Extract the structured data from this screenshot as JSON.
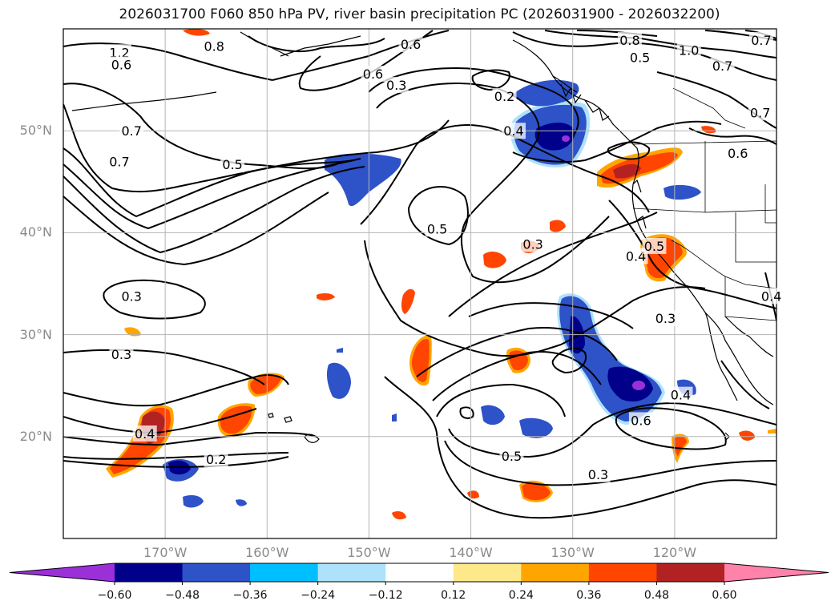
{
  "title": "2026031700 F060 850 hPa PV, river basin precipitation PC (2026031900 - 2026032200)",
  "map": {
    "lon_range": [
      -180,
      -110
    ],
    "lat_range": [
      10,
      60
    ],
    "lat_labels": [
      {
        "lat": 50,
        "label": "50°N"
      },
      {
        "lat": 40,
        "label": "40°N"
      },
      {
        "lat": 30,
        "label": "30°N"
      },
      {
        "lat": 20,
        "label": "20°N"
      }
    ],
    "lon_labels": [
      {
        "lon": -170,
        "label": "170°W"
      },
      {
        "lon": -160,
        "label": "160°W"
      },
      {
        "lon": -150,
        "label": "150°W"
      },
      {
        "lon": -140,
        "label": "140°W"
      },
      {
        "lon": -130,
        "label": "130°W"
      },
      {
        "lon": -120,
        "label": "120°W"
      }
    ],
    "contour_labels": [
      {
        "text": "1.2",
        "lon": -174.5,
        "lat": 57.7
      },
      {
        "text": "0.8",
        "lon": -165.2,
        "lat": 58.3
      },
      {
        "text": "0.6",
        "lon": -174.3,
        "lat": 56.5
      },
      {
        "text": "0.6",
        "lon": -149.6,
        "lat": 55.6
      },
      {
        "text": "0.6",
        "lon": -145.9,
        "lat": 58.5
      },
      {
        "text": "0.3",
        "lon": -147.3,
        "lat": 54.5
      },
      {
        "text": "0.2",
        "lon": -136.7,
        "lat": 53.4
      },
      {
        "text": "0.8",
        "lon": -124.4,
        "lat": 58.9
      },
      {
        "text": "0.5",
        "lon": -123.4,
        "lat": 57.2
      },
      {
        "text": "1.0",
        "lon": -118.6,
        "lat": 57.9
      },
      {
        "text": "0.7",
        "lon": -111.5,
        "lat": 58.9
      },
      {
        "text": "0.7",
        "lon": -115.3,
        "lat": 56.4
      },
      {
        "text": "0.7",
        "lon": -111.6,
        "lat": 51.8
      },
      {
        "text": "0.4",
        "lon": -135.8,
        "lat": 50.0
      },
      {
        "text": "0.6",
        "lon": -113.8,
        "lat": 47.8
      },
      {
        "text": "0.7",
        "lon": -173.3,
        "lat": 50.0
      },
      {
        "text": "0.7",
        "lon": -174.5,
        "lat": 47.0
      },
      {
        "text": "0.5",
        "lon": -163.4,
        "lat": 46.7
      },
      {
        "text": "0.5",
        "lon": -143.3,
        "lat": 40.4
      },
      {
        "text": "0.3",
        "lon": -133.9,
        "lat": 38.9
      },
      {
        "text": "0.4",
        "lon": -123.8,
        "lat": 37.7
      },
      {
        "text": "0.5",
        "lon": -122.0,
        "lat": 38.7
      },
      {
        "text": "0.4",
        "lon": -110.5,
        "lat": 33.8
      },
      {
        "text": "0.3",
        "lon": -120.9,
        "lat": 31.6
      },
      {
        "text": "0.3",
        "lon": -173.3,
        "lat": 33.8
      },
      {
        "text": "0.3",
        "lon": -174.3,
        "lat": 28.1
      },
      {
        "text": "0.4",
        "lon": -119.4,
        "lat": 24.1
      },
      {
        "text": "0.6",
        "lon": -123.3,
        "lat": 21.6
      },
      {
        "text": "0.4",
        "lon": -172.0,
        "lat": 20.3
      },
      {
        "text": "0.2",
        "lon": -165.0,
        "lat": 17.8
      },
      {
        "text": "0.5",
        "lon": -136.0,
        "lat": 18.1
      },
      {
        "text": "0.3",
        "lon": -127.5,
        "lat": 16.3
      }
    ]
  },
  "colorbar": {
    "colors": [
      "#9b30d9",
      "#00008b",
      "#2e52c8",
      "#00bfff",
      "#aee2fb",
      "#ffffff",
      "#fde98a",
      "#ffa500",
      "#ff4500",
      "#b22222",
      "#ff82ab"
    ],
    "tick_values": [
      -0.6,
      -0.48,
      -0.36,
      -0.24,
      -0.12,
      0.12,
      0.24,
      0.36,
      0.48,
      0.6
    ],
    "tick_labels": [
      "−0.60",
      "−0.48",
      "−0.36",
      "−0.24",
      "−0.12",
      "0.12",
      "0.24",
      "0.36",
      "0.48",
      "0.60"
    ]
  }
}
